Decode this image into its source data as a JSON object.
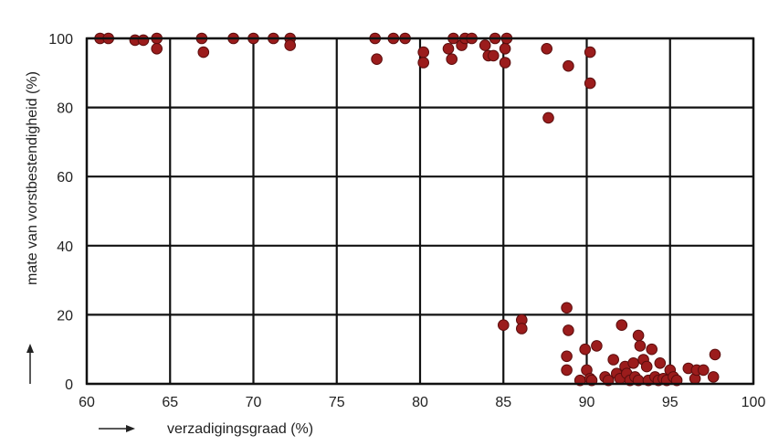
{
  "chart_data": {
    "type": "scatter",
    "title": "",
    "xlabel": "verzadigingsgraad (%)",
    "ylabel": "mate van vorstbestendigheid (%)",
    "xlim": [
      60,
      100
    ],
    "ylim": [
      0,
      100
    ],
    "xticks": [
      60,
      65,
      70,
      75,
      80,
      85,
      90,
      95,
      100
    ],
    "yticks": [
      0,
      20,
      40,
      60,
      80,
      100
    ],
    "x_tick_labels": [
      "60",
      "65",
      "70",
      "75",
      "80",
      "85",
      "90",
      "95",
      "100"
    ],
    "y_tick_labels": [
      "0",
      "20",
      "40",
      "60",
      "80",
      "100"
    ],
    "grid": true,
    "legend": "none",
    "point_color": "#9b1c1c",
    "point_stroke": "#5a0d0d",
    "x": [
      60.8,
      61.3,
      62.9,
      63.4,
      64.2,
      64.2,
      66.9,
      67.0,
      68.8,
      70.0,
      71.2,
      72.2,
      72.2,
      77.3,
      77.4,
      78.4,
      79.1,
      80.2,
      80.2,
      81.7,
      81.9,
      82.0,
      82.5,
      82.7,
      83.1,
      83.9,
      84.1,
      84.4,
      84.5,
      85.1,
      85.1,
      85.2,
      87.6,
      87.7,
      88.9,
      90.2,
      90.2,
      85.0,
      86.1,
      86.1,
      88.8,
      88.9,
      88.8,
      88.8,
      89.6,
      89.9,
      90.0,
      90.2,
      90.3,
      90.6,
      91.1,
      91.3,
      91.6,
      91.8,
      92.0,
      92.1,
      92.3,
      92.4,
      92.6,
      92.8,
      92.9,
      93.1,
      93.1,
      93.2,
      93.4,
      93.6,
      93.7,
      93.9,
      94.1,
      94.3,
      94.4,
      94.6,
      94.8,
      95.0,
      95.2,
      95.4,
      96.1,
      96.5,
      96.6,
      97.0,
      97.6,
      97.7
    ],
    "y": [
      100,
      100,
      99.5,
      99.5,
      100,
      97,
      100,
      96,
      100,
      100,
      100,
      100,
      98,
      100,
      94,
      100,
      100,
      96,
      93,
      97,
      94,
      100,
      98,
      100,
      100,
      98,
      95,
      95,
      100,
      97,
      93,
      100,
      97,
      77,
      92,
      96,
      87,
      17,
      18.5,
      16,
      22,
      15.5,
      8,
      4,
      1,
      10,
      4,
      1.5,
      1,
      11,
      2,
      1,
      7,
      3,
      1.5,
      17,
      5,
      3,
      1,
      6,
      2,
      14,
      1,
      11,
      7,
      5,
      1,
      10,
      2,
      1,
      6,
      1.5,
      1,
      4,
      2,
      1,
      4.5,
      1.5,
      4,
      4,
      2,
      8.5
    ]
  }
}
